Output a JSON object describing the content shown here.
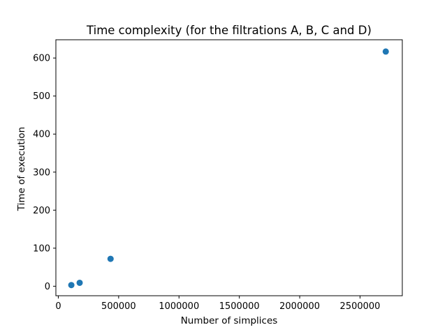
{
  "chart_data": {
    "type": "scatter",
    "title": "Time complexity (for  the filtrations A, B, C and D)",
    "xlabel": "Number of simplices",
    "ylabel": "Time of execution",
    "xlim": [
      -20000,
      2850000
    ],
    "ylim": [
      -25,
      648
    ],
    "xticks": [
      0,
      500000,
      1000000,
      1500000,
      2000000,
      2500000
    ],
    "xtick_labels": [
      "0",
      "500000",
      "1000000",
      "1500000",
      "2000000",
      "2500000"
    ],
    "yticks": [
      0,
      100,
      200,
      300,
      400,
      500,
      600
    ],
    "ytick_labels": [
      "0",
      "100",
      "200",
      "300",
      "400",
      "500",
      "600"
    ],
    "grid": false,
    "marker_color": "#1f77b4",
    "points": [
      {
        "x": 108000,
        "y": 3
      },
      {
        "x": 177000,
        "y": 9
      },
      {
        "x": 433000,
        "y": 72
      },
      {
        "x": 2713000,
        "y": 617
      }
    ]
  }
}
